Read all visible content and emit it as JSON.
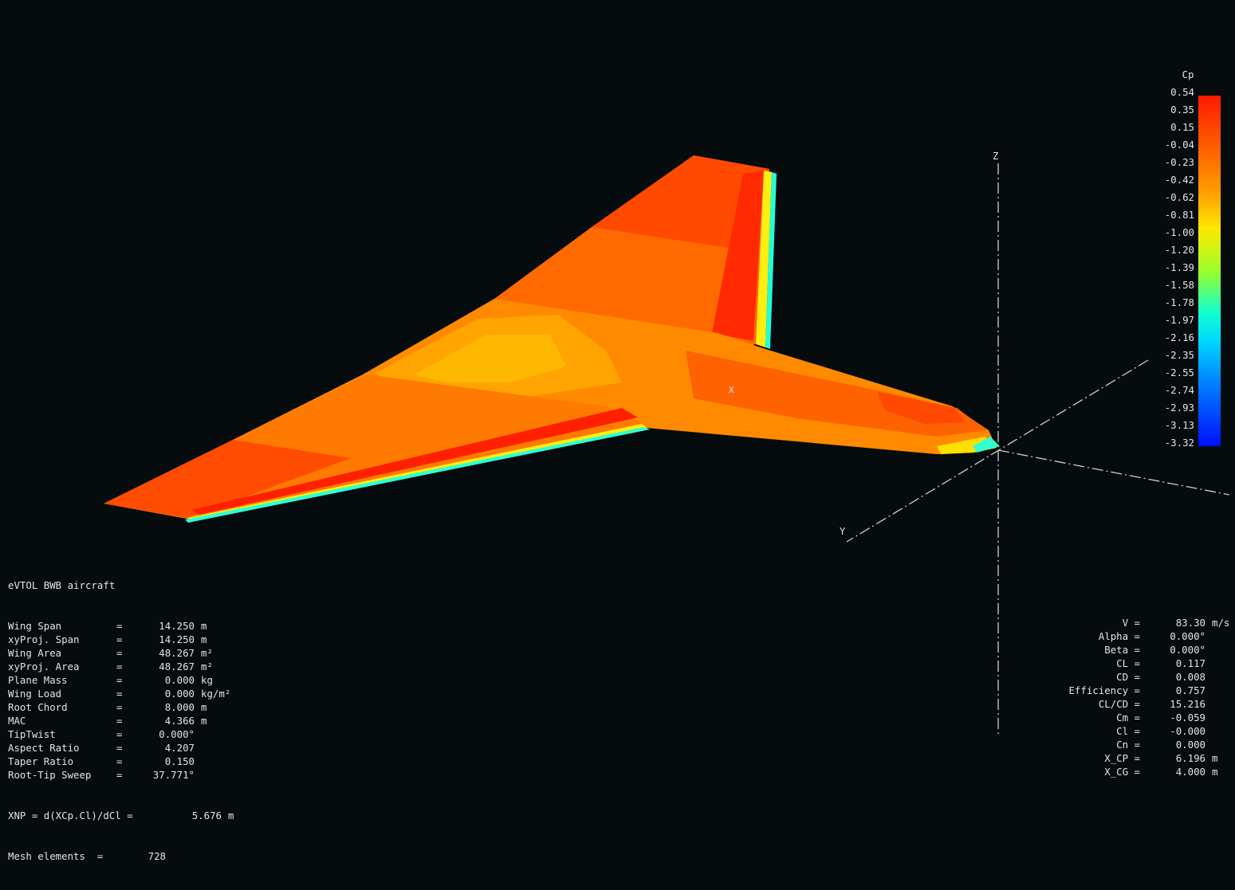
{
  "scene": {
    "axis_labels": {
      "x": "X",
      "y": "Y",
      "z": "Z"
    },
    "cp_marker": "X"
  },
  "colors": {
    "background": "#060b0e",
    "text": "#e4e4e4",
    "axis": "#cfcfcf"
  },
  "legend": {
    "title": "Cp",
    "ticks": [
      "0.54",
      "0.35",
      "0.15",
      "-0.04",
      "-0.23",
      "-0.42",
      "-0.62",
      "-0.81",
      "-1.00",
      "-1.20",
      "-1.39",
      "-1.58",
      "-1.78",
      "-1.97",
      "-2.16",
      "-2.35",
      "-2.55",
      "-2.74",
      "-2.93",
      "-3.13",
      "-3.32"
    ]
  },
  "plane_info": {
    "name": "eVTOL BWB aircraft",
    "rows": [
      {
        "label": "Wing Span",
        "eq": "=",
        "value": "14.250",
        "unit": "m"
      },
      {
        "label": "xyProj. Span",
        "eq": "=",
        "value": "14.250",
        "unit": "m"
      },
      {
        "label": "Wing Area",
        "eq": "=",
        "value": "48.267",
        "unit": "m²"
      },
      {
        "label": "xyProj. Area",
        "eq": "=",
        "value": "48.267",
        "unit": "m²"
      },
      {
        "label": "Plane Mass",
        "eq": "=",
        "value": "0.000",
        "unit": "kg"
      },
      {
        "label": "Wing Load",
        "eq": "=",
        "value": "0.000",
        "unit": "kg/m²"
      },
      {
        "label": "Root Chord",
        "eq": "=",
        "value": "8.000",
        "unit": "m"
      },
      {
        "label": "MAC",
        "eq": "=",
        "value": "4.366",
        "unit": "m"
      },
      {
        "label": "TipTwist",
        "eq": "=",
        "value": "0.000°",
        "unit": ""
      },
      {
        "label": "Aspect Ratio",
        "eq": "=",
        "value": "4.207",
        "unit": ""
      },
      {
        "label": "Taper Ratio",
        "eq": "=",
        "value": "0.150",
        "unit": ""
      },
      {
        "label": "Root-Tip Sweep",
        "eq": "=",
        "value": "37.771°",
        "unit": ""
      }
    ],
    "xnp": {
      "label": "XNP = d(XCp.Cl)/dCl =",
      "value": "5.676",
      "unit": "m"
    },
    "mesh": {
      "label": "Mesh elements  =",
      "value": "728"
    }
  },
  "polar_info": {
    "rows": [
      {
        "label": "V =",
        "value": "83.30",
        "unit": "m/s"
      },
      {
        "label": "Alpha =",
        "value": "0.000°",
        "unit": ""
      },
      {
        "label": "Beta =",
        "value": "0.000°",
        "unit": ""
      },
      {
        "label": "CL =",
        "value": "0.117",
        "unit": ""
      },
      {
        "label": "CD =",
        "value": "0.008",
        "unit": ""
      },
      {
        "label": "Efficiency =",
        "value": "0.757",
        "unit": ""
      },
      {
        "label": "CL/CD =",
        "value": "15.216",
        "unit": ""
      },
      {
        "label": "Cm =",
        "value": "-0.059",
        "unit": ""
      },
      {
        "label": "Cl =",
        "value": "-0.000",
        "unit": ""
      },
      {
        "label": "Cn =",
        "value": "0.000",
        "unit": ""
      },
      {
        "label": "X_CP =",
        "value": "6.196",
        "unit": "m"
      },
      {
        "label": "X_CG =",
        "value": "4.000",
        "unit": "m"
      }
    ]
  }
}
